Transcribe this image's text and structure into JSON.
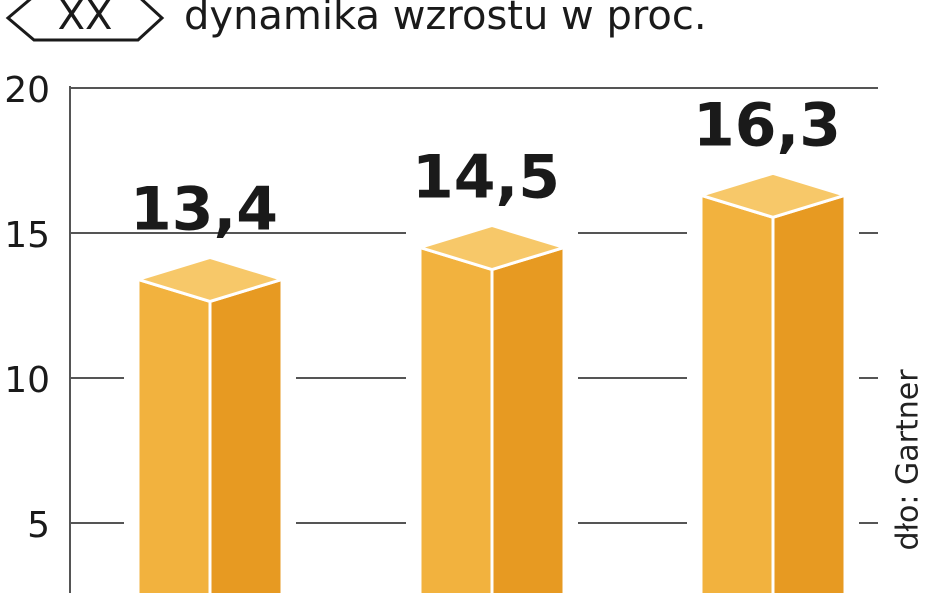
{
  "legend": {
    "marker_label": "XX",
    "text": "dynamika wzrostu w proc."
  },
  "source": "dło: Gartner",
  "colors": {
    "bar_front": "#F2B23E",
    "bar_side": "#E79A22",
    "bar_top": "#F7C869",
    "grid": "#555555",
    "text": "#1a1a1a"
  },
  "chart_data": {
    "type": "bar",
    "categories": [
      "",
      "",
      ""
    ],
    "series": [
      {
        "values": [
          13.4,
          14.5,
          16.3
        ]
      }
    ],
    "data_labels": [
      "13,4",
      "14,5",
      "16,3"
    ],
    "y_ticks": [
      5,
      10,
      15,
      20
    ],
    "y_tick_labels": [
      "5",
      "10",
      "15",
      "20"
    ],
    "ylim": [
      0,
      20
    ],
    "grid": true,
    "title": "",
    "xlabel": "",
    "ylabel": ""
  }
}
